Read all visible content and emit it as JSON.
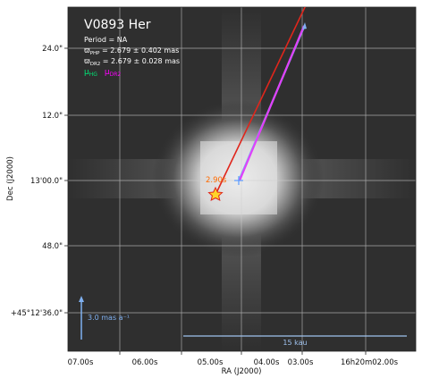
{
  "chart_data": {
    "type": "image",
    "title": "V0893 Her",
    "info_lines": [
      "Period = NA",
      "ϖ",
      "ϖ"
    ],
    "parallax_1": {
      "symbol": "ϖ",
      "sub": "PHP",
      "text": " = 2.679 ± 0.402 mas"
    },
    "parallax_2": {
      "symbol": "ϖ",
      "sub": "DR2",
      "text": " = 2.679 ± 0.028 mas"
    },
    "legend": [
      {
        "symbol": "μ",
        "sub": "HG",
        "color": "#00e676"
      },
      {
        "symbol": "μ",
        "sub": "DR2",
        "color": "#ff00ff"
      }
    ],
    "xlabel": "RA (J2000)",
    "ylabel": "Dec (J2000)",
    "x_ticks": [
      "07.00s",
      "06.00s",
      "05.00s",
      "04.00s",
      "03.00s",
      "16h20m02.00s"
    ],
    "y_ticks": [
      "24.0\"",
      "12.0\"",
      "13'00.0\"",
      "48.0\"",
      "+45°12'36.0\""
    ],
    "star_label": "2.90s",
    "arrow_label": "3.0 mas a⁻¹",
    "scale_bar_label": "15 kau",
    "colors": {
      "red_vector": "#e0261c",
      "magenta_vector": "#e040fb",
      "blue_vector": "#7fb0f0",
      "star_fill": "#ffd42a",
      "star_label": "#ff6a00",
      "text_white": "#ffffff",
      "grid": "#cfcfcf"
    }
  }
}
